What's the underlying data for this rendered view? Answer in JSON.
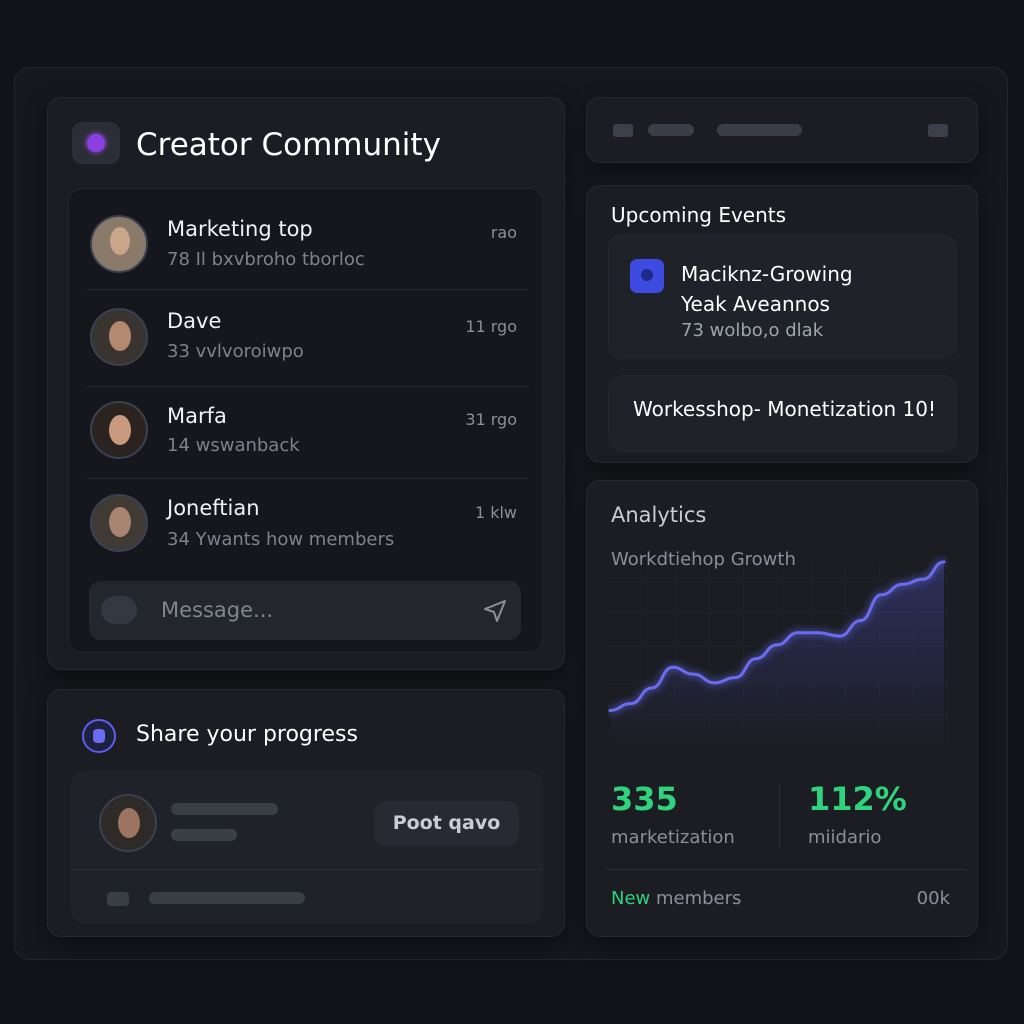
{
  "header": {
    "title": "Creator Community"
  },
  "messages": [
    {
      "name": "Marketing top",
      "preview": "78 Il bxvbroho tborloc",
      "time": "rao"
    },
    {
      "name": "Dave",
      "preview": "33 vvlvoroiwpo",
      "time": "11 rgo"
    },
    {
      "name": "Marfa",
      "preview": "14 wswanback",
      "time": "31 rgo"
    },
    {
      "name": "Joneftian",
      "preview": "34 Ywants how members",
      "time": "1 klw"
    }
  ],
  "composer": {
    "placeholder": "Message..."
  },
  "share": {
    "title": "Share your progress",
    "button": "Poot qavo"
  },
  "events": {
    "title": "Upcoming Events",
    "items": [
      {
        "title": [
          "Maciknz-Growing",
          "Yeak Aveannos"
        ],
        "detail": "73 wolbo,o dlak"
      },
      {
        "title": [
          "Workesshop- Monetization 10!"
        ]
      }
    ]
  },
  "analytics": {
    "title": "Analytics",
    "chart": {
      "type": "line",
      "subtitle": "Workdtiehop Growth",
      "color": "#6b6cf0",
      "values": [
        20,
        24,
        33,
        45,
        41,
        36,
        39,
        50,
        58,
        65,
        65,
        63,
        72,
        87,
        93,
        96,
        106
      ],
      "ylim": [
        0,
        110
      ]
    },
    "stats": [
      {
        "value": "335",
        "label": "marketization"
      },
      {
        "value": "112%",
        "label": "miidario"
      }
    ],
    "footer": {
      "label": "New members",
      "value": "00k"
    }
  }
}
